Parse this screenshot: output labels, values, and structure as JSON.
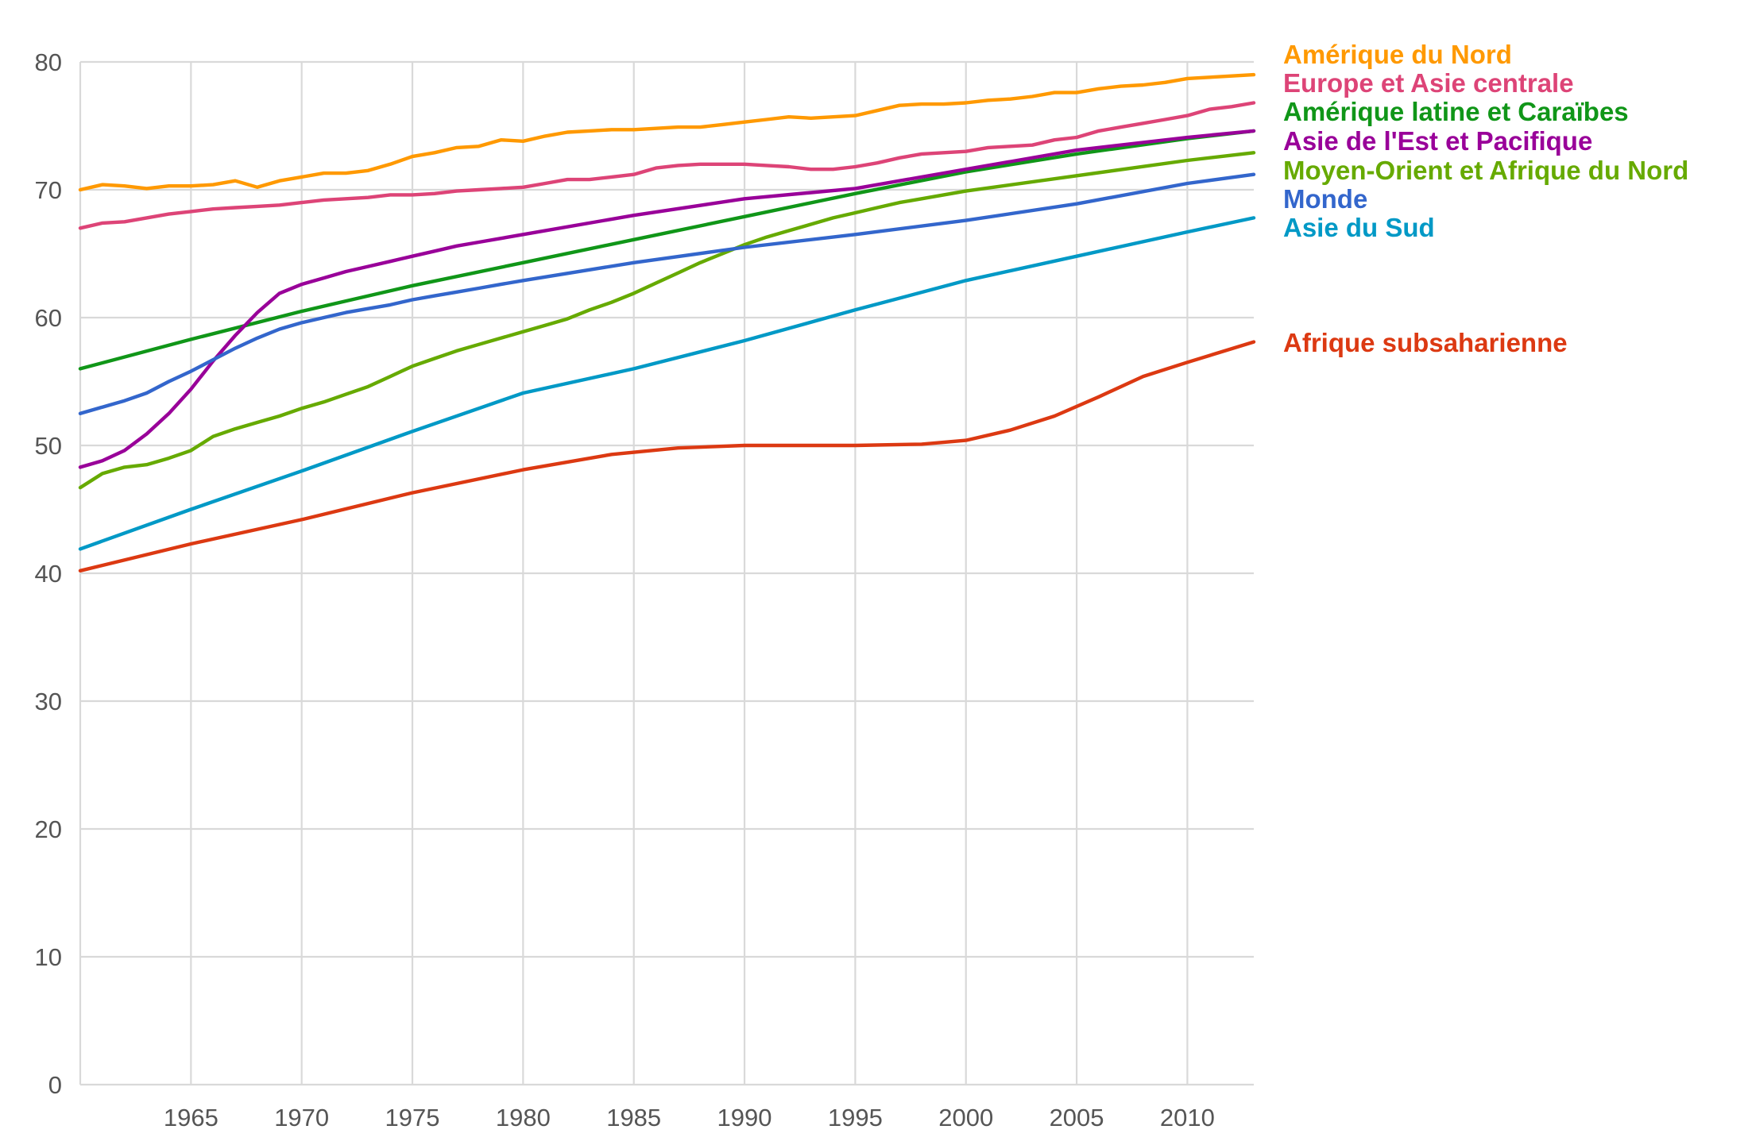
{
  "chart_data": {
    "type": "line",
    "title": "",
    "xlabel": "",
    "ylabel": "",
    "xlim": [
      1960,
      2013
    ],
    "ylim": [
      0,
      80
    ],
    "x_ticks": [
      1965,
      1970,
      1975,
      1980,
      1985,
      1990,
      1995,
      2000,
      2005,
      2010
    ],
    "y_ticks": [
      0,
      10,
      20,
      30,
      40,
      50,
      60,
      70,
      80
    ],
    "grid": true,
    "legend_position": "right",
    "series": [
      {
        "name": "Amérique du Nord",
        "color": "#ff9900",
        "points": [
          [
            1960,
            70.0
          ],
          [
            1961,
            70.4
          ],
          [
            1962,
            70.3
          ],
          [
            1963,
            70.1
          ],
          [
            1964,
            70.3
          ],
          [
            1965,
            70.3
          ],
          [
            1966,
            70.4
          ],
          [
            1967,
            70.7
          ],
          [
            1968,
            70.2
          ],
          [
            1969,
            70.7
          ],
          [
            1970,
            71.0
          ],
          [
            1971,
            71.3
          ],
          [
            1972,
            71.3
          ],
          [
            1973,
            71.5
          ],
          [
            1974,
            72.0
          ],
          [
            1975,
            72.6
          ],
          [
            1976,
            72.9
          ],
          [
            1977,
            73.3
          ],
          [
            1978,
            73.4
          ],
          [
            1979,
            73.9
          ],
          [
            1980,
            73.8
          ],
          [
            1981,
            74.2
          ],
          [
            1982,
            74.5
          ],
          [
            1983,
            74.6
          ],
          [
            1984,
            74.7
          ],
          [
            1985,
            74.7
          ],
          [
            1986,
            74.8
          ],
          [
            1987,
            74.9
          ],
          [
            1988,
            74.9
          ],
          [
            1989,
            75.1
          ],
          [
            1990,
            75.3
          ],
          [
            1991,
            75.5
          ],
          [
            1992,
            75.7
          ],
          [
            1993,
            75.6
          ],
          [
            1994,
            75.7
          ],
          [
            1995,
            75.8
          ],
          [
            1996,
            76.2
          ],
          [
            1997,
            76.6
          ],
          [
            1998,
            76.7
          ],
          [
            1999,
            76.7
          ],
          [
            2000,
            76.8
          ],
          [
            2001,
            77.0
          ],
          [
            2002,
            77.1
          ],
          [
            2003,
            77.3
          ],
          [
            2004,
            77.6
          ],
          [
            2005,
            77.6
          ],
          [
            2006,
            77.9
          ],
          [
            2007,
            78.1
          ],
          [
            2008,
            78.2
          ],
          [
            2009,
            78.4
          ],
          [
            2010,
            78.7
          ],
          [
            2011,
            78.8
          ],
          [
            2012,
            78.9
          ],
          [
            2013,
            79.0
          ]
        ]
      },
      {
        "name": "Europe et Asie centrale",
        "color": "#dd4477",
        "points": [
          [
            1960,
            67.0
          ],
          [
            1961,
            67.4
          ],
          [
            1962,
            67.5
          ],
          [
            1963,
            67.8
          ],
          [
            1964,
            68.1
          ],
          [
            1965,
            68.3
          ],
          [
            1966,
            68.5
          ],
          [
            1967,
            68.6
          ],
          [
            1968,
            68.7
          ],
          [
            1969,
            68.8
          ],
          [
            1970,
            69.0
          ],
          [
            1971,
            69.2
          ],
          [
            1972,
            69.3
          ],
          [
            1973,
            69.4
          ],
          [
            1974,
            69.6
          ],
          [
            1975,
            69.6
          ],
          [
            1976,
            69.7
          ],
          [
            1977,
            69.9
          ],
          [
            1978,
            70.0
          ],
          [
            1979,
            70.1
          ],
          [
            1980,
            70.2
          ],
          [
            1981,
            70.5
          ],
          [
            1982,
            70.8
          ],
          [
            1983,
            70.8
          ],
          [
            1984,
            71.0
          ],
          [
            1985,
            71.2
          ],
          [
            1986,
            71.7
          ],
          [
            1987,
            71.9
          ],
          [
            1988,
            72.0
          ],
          [
            1989,
            72.0
          ],
          [
            1990,
            72.0
          ],
          [
            1991,
            71.9
          ],
          [
            1992,
            71.8
          ],
          [
            1993,
            71.6
          ],
          [
            1994,
            71.6
          ],
          [
            1995,
            71.8
          ],
          [
            1996,
            72.1
          ],
          [
            1997,
            72.5
          ],
          [
            1998,
            72.8
          ],
          [
            1999,
            72.9
          ],
          [
            2000,
            73.0
          ],
          [
            2001,
            73.3
          ],
          [
            2002,
            73.4
          ],
          [
            2003,
            73.5
          ],
          [
            2004,
            73.9
          ],
          [
            2005,
            74.1
          ],
          [
            2006,
            74.6
          ],
          [
            2007,
            74.9
          ],
          [
            2008,
            75.2
          ],
          [
            2009,
            75.5
          ],
          [
            2010,
            75.8
          ],
          [
            2011,
            76.3
          ],
          [
            2012,
            76.5
          ],
          [
            2013,
            76.8
          ]
        ]
      },
      {
        "name": "Amérique latine et Caraïbes",
        "color": "#109618",
        "points": [
          [
            1960,
            56.0
          ],
          [
            1965,
            58.3
          ],
          [
            1970,
            60.5
          ],
          [
            1975,
            62.5
          ],
          [
            1980,
            64.3
          ],
          [
            1985,
            66.1
          ],
          [
            1990,
            67.9
          ],
          [
            1995,
            69.7
          ],
          [
            2000,
            71.4
          ],
          [
            2005,
            72.8
          ],
          [
            2010,
            74.0
          ],
          [
            2013,
            74.6
          ]
        ]
      },
      {
        "name": "Asie de l'Est et Pacifique",
        "color": "#990099",
        "points": [
          [
            1960,
            48.3
          ],
          [
            1961,
            48.8
          ],
          [
            1962,
            49.6
          ],
          [
            1963,
            50.9
          ],
          [
            1964,
            52.5
          ],
          [
            1965,
            54.4
          ],
          [
            1966,
            56.6
          ],
          [
            1967,
            58.6
          ],
          [
            1968,
            60.4
          ],
          [
            1969,
            61.9
          ],
          [
            1970,
            62.6
          ],
          [
            1971,
            63.1
          ],
          [
            1972,
            63.6
          ],
          [
            1973,
            64.0
          ],
          [
            1974,
            64.4
          ],
          [
            1975,
            64.8
          ],
          [
            1976,
            65.2
          ],
          [
            1977,
            65.6
          ],
          [
            1978,
            65.9
          ],
          [
            1979,
            66.2
          ],
          [
            1980,
            66.5
          ],
          [
            1985,
            68.0
          ],
          [
            1990,
            69.3
          ],
          [
            1995,
            70.1
          ],
          [
            2000,
            71.6
          ],
          [
            2005,
            73.1
          ],
          [
            2010,
            74.1
          ],
          [
            2013,
            74.6
          ]
        ]
      },
      {
        "name": "Moyen-Orient et Afrique du Nord",
        "color": "#66aa00",
        "points": [
          [
            1960,
            46.7
          ],
          [
            1961,
            47.8
          ],
          [
            1962,
            48.3
          ],
          [
            1963,
            48.5
          ],
          [
            1964,
            49.0
          ],
          [
            1965,
            49.6
          ],
          [
            1966,
            50.7
          ],
          [
            1967,
            51.3
          ],
          [
            1968,
            51.8
          ],
          [
            1969,
            52.3
          ],
          [
            1970,
            52.9
          ],
          [
            1971,
            53.4
          ],
          [
            1972,
            54.0
          ],
          [
            1973,
            54.6
          ],
          [
            1974,
            55.4
          ],
          [
            1975,
            56.2
          ],
          [
            1976,
            56.8
          ],
          [
            1977,
            57.4
          ],
          [
            1978,
            57.9
          ],
          [
            1979,
            58.4
          ],
          [
            1980,
            58.9
          ],
          [
            1981,
            59.4
          ],
          [
            1982,
            59.9
          ],
          [
            1983,
            60.6
          ],
          [
            1984,
            61.2
          ],
          [
            1985,
            61.9
          ],
          [
            1986,
            62.7
          ],
          [
            1987,
            63.5
          ],
          [
            1988,
            64.3
          ],
          [
            1989,
            65.0
          ],
          [
            1990,
            65.7
          ],
          [
            1991,
            66.3
          ],
          [
            1992,
            66.8
          ],
          [
            1993,
            67.3
          ],
          [
            1994,
            67.8
          ],
          [
            1995,
            68.2
          ],
          [
            1996,
            68.6
          ],
          [
            1997,
            69.0
          ],
          [
            1998,
            69.3
          ],
          [
            1999,
            69.6
          ],
          [
            2000,
            69.9
          ],
          [
            2005,
            71.1
          ],
          [
            2010,
            72.3
          ],
          [
            2013,
            72.9
          ]
        ]
      },
      {
        "name": "Monde",
        "color": "#3366cc",
        "points": [
          [
            1960,
            52.5
          ],
          [
            1961,
            53.0
          ],
          [
            1962,
            53.5
          ],
          [
            1963,
            54.1
          ],
          [
            1964,
            55.0
          ],
          [
            1965,
            55.8
          ],
          [
            1966,
            56.7
          ],
          [
            1967,
            57.6
          ],
          [
            1968,
            58.4
          ],
          [
            1969,
            59.1
          ],
          [
            1970,
            59.6
          ],
          [
            1971,
            60.0
          ],
          [
            1972,
            60.4
          ],
          [
            1973,
            60.7
          ],
          [
            1974,
            61.0
          ],
          [
            1975,
            61.4
          ],
          [
            1976,
            61.7
          ],
          [
            1977,
            62.0
          ],
          [
            1978,
            62.3
          ],
          [
            1979,
            62.6
          ],
          [
            1980,
            62.9
          ],
          [
            1985,
            64.3
          ],
          [
            1990,
            65.5
          ],
          [
            1995,
            66.5
          ],
          [
            2000,
            67.6
          ],
          [
            2005,
            68.9
          ],
          [
            2010,
            70.5
          ],
          [
            2013,
            71.2
          ]
        ]
      },
      {
        "name": "Asie du Sud",
        "color": "#0099c6",
        "points": [
          [
            1960,
            41.9
          ],
          [
            1965,
            45.0
          ],
          [
            1970,
            48.0
          ],
          [
            1975,
            51.1
          ],
          [
            1980,
            54.1
          ],
          [
            1985,
            56.0
          ],
          [
            1990,
            58.2
          ],
          [
            1995,
            60.6
          ],
          [
            2000,
            62.9
          ],
          [
            2005,
            64.8
          ],
          [
            2010,
            66.7
          ],
          [
            2013,
            67.8
          ]
        ]
      },
      {
        "name": "Afrique subsaharienne",
        "color": "#dc3912",
        "points": [
          [
            1960,
            40.2
          ],
          [
            1965,
            42.3
          ],
          [
            1970,
            44.2
          ],
          [
            1975,
            46.3
          ],
          [
            1980,
            48.1
          ],
          [
            1984,
            49.3
          ],
          [
            1987,
            49.8
          ],
          [
            1990,
            50.0
          ],
          [
            1995,
            50.0
          ],
          [
            1998,
            50.1
          ],
          [
            2000,
            50.4
          ],
          [
            2002,
            51.2
          ],
          [
            2004,
            52.3
          ],
          [
            2006,
            53.8
          ],
          [
            2008,
            55.4
          ],
          [
            2010,
            56.5
          ],
          [
            2013,
            58.1
          ]
        ]
      }
    ]
  }
}
